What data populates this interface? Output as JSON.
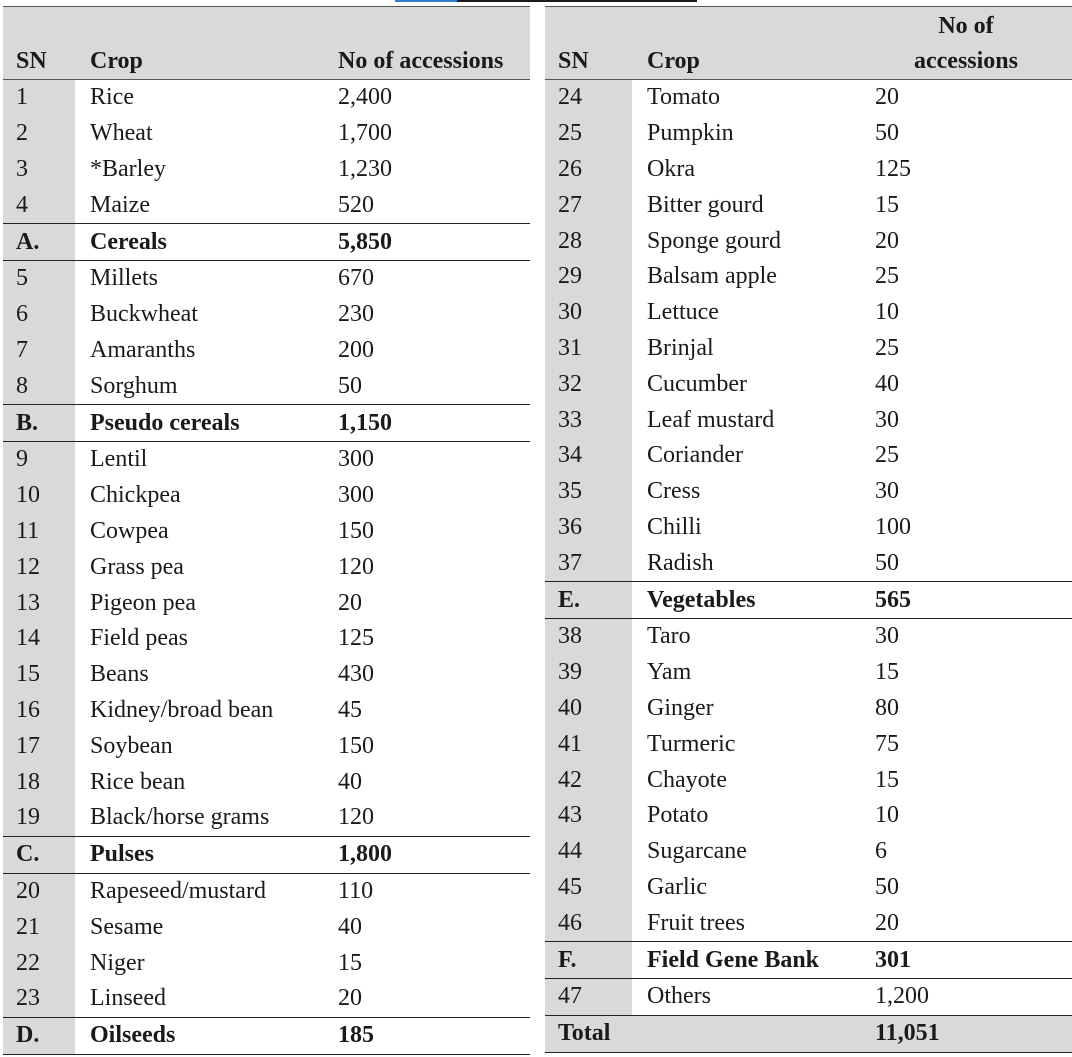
{
  "headers": {
    "sn": "SN",
    "crop": "Crop",
    "accessions": "No of accessions",
    "accessions_line1": "No of",
    "accessions_line2": "accessions"
  },
  "left": [
    {
      "sn": "1",
      "crop": "Rice",
      "count": "2,400"
    },
    {
      "sn": "2",
      "crop": "Wheat",
      "count": "1,700"
    },
    {
      "sn": "3",
      "crop": "*Barley",
      "count": "1,230"
    },
    {
      "sn": "4",
      "crop": "Maize",
      "count": "520"
    },
    {
      "sn": "A.",
      "crop": "Cereals",
      "count": "5,850",
      "subtotal": true
    },
    {
      "sn": "5",
      "crop": "Millets",
      "count": "670"
    },
    {
      "sn": "6",
      "crop": "Buckwheat",
      "count": "230"
    },
    {
      "sn": "7",
      "crop": "Amaranths",
      "count": "200"
    },
    {
      "sn": "8",
      "crop": "Sorghum",
      "count": "50"
    },
    {
      "sn": "B.",
      "crop": "Pseudo cereals",
      "count": "1,150",
      "subtotal": true
    },
    {
      "sn": "9",
      "crop": "Lentil",
      "count": "300"
    },
    {
      "sn": "10",
      "crop": "Chickpea",
      "count": "300"
    },
    {
      "sn": "11",
      "crop": "Cowpea",
      "count": "150"
    },
    {
      "sn": "12",
      "crop": "Grass pea",
      "count": "120"
    },
    {
      "sn": "13",
      "crop": "Pigeon pea",
      "count": "20"
    },
    {
      "sn": "14",
      "crop": "Field peas",
      "count": "125"
    },
    {
      "sn": "15",
      "crop": "Beans",
      "count": "430"
    },
    {
      "sn": "16",
      "crop": "Kidney/broad bean",
      "count": "45"
    },
    {
      "sn": "17",
      "crop": "Soybean",
      "count": "150"
    },
    {
      "sn": "18",
      "crop": "Rice bean",
      "count": "40"
    },
    {
      "sn": "19",
      "crop": "Black/horse grams",
      "count": "120"
    },
    {
      "sn": "C.",
      "crop": "Pulses",
      "count": "1,800",
      "subtotal": true
    },
    {
      "sn": "20",
      "crop": "Rapeseed/mustard",
      "count": "110"
    },
    {
      "sn": "21",
      "crop": "Sesame",
      "count": "40"
    },
    {
      "sn": "22",
      "crop": "Niger",
      "count": "15"
    },
    {
      "sn": "23",
      "crop": "Linseed",
      "count": "20"
    },
    {
      "sn": "D.",
      "crop": "Oilseeds",
      "count": "185",
      "subtotal": true
    }
  ],
  "right": [
    {
      "sn": "24",
      "crop": "Tomato",
      "count": "20"
    },
    {
      "sn": "25",
      "crop": "Pumpkin",
      "count": "50"
    },
    {
      "sn": "26",
      "crop": "Okra",
      "count": "125"
    },
    {
      "sn": "27",
      "crop": "Bitter gourd",
      "count": "15"
    },
    {
      "sn": "28",
      "crop": "Sponge gourd",
      "count": "20"
    },
    {
      "sn": "29",
      "crop": "Balsam apple",
      "count": "25"
    },
    {
      "sn": "30",
      "crop": "Lettuce",
      "count": "10"
    },
    {
      "sn": "31",
      "crop": "Brinjal",
      "count": "25"
    },
    {
      "sn": "32",
      "crop": "Cucumber",
      "count": "40"
    },
    {
      "sn": "33",
      "crop": "Leaf mustard",
      "count": "30"
    },
    {
      "sn": "34",
      "crop": "Coriander",
      "count": "25"
    },
    {
      "sn": "35",
      "crop": "Cress",
      "count": "30"
    },
    {
      "sn": "36",
      "crop": "Chilli",
      "count": "100"
    },
    {
      "sn": "37",
      "crop": "Radish",
      "count": "50"
    },
    {
      "sn": "E.",
      "crop": "Vegetables",
      "count": "565",
      "subtotal": true
    },
    {
      "sn": "38",
      "crop": "Taro",
      "count": "30"
    },
    {
      "sn": "39",
      "crop": "Yam",
      "count": "15"
    },
    {
      "sn": "40",
      "crop": "Ginger",
      "count": "80"
    },
    {
      "sn": "41",
      "crop": "Turmeric",
      "count": "75"
    },
    {
      "sn": "42",
      "crop": "Chayote",
      "count": "15"
    },
    {
      "sn": "43",
      "crop": "Potato",
      "count": "10"
    },
    {
      "sn": "44",
      "crop": "Sugarcane",
      "count": "6"
    },
    {
      "sn": "45",
      "crop": "Garlic",
      "count": "50"
    },
    {
      "sn": "46",
      "crop": "Fruit trees",
      "count": "20"
    },
    {
      "sn": "F.",
      "crop": "Field Gene Bank",
      "count": "301",
      "subtotal": true
    },
    {
      "sn": "47",
      "crop": "Others",
      "count": "1,200"
    },
    {
      "sn": "Total",
      "crop": "",
      "count": "11,051",
      "total": true
    }
  ]
}
